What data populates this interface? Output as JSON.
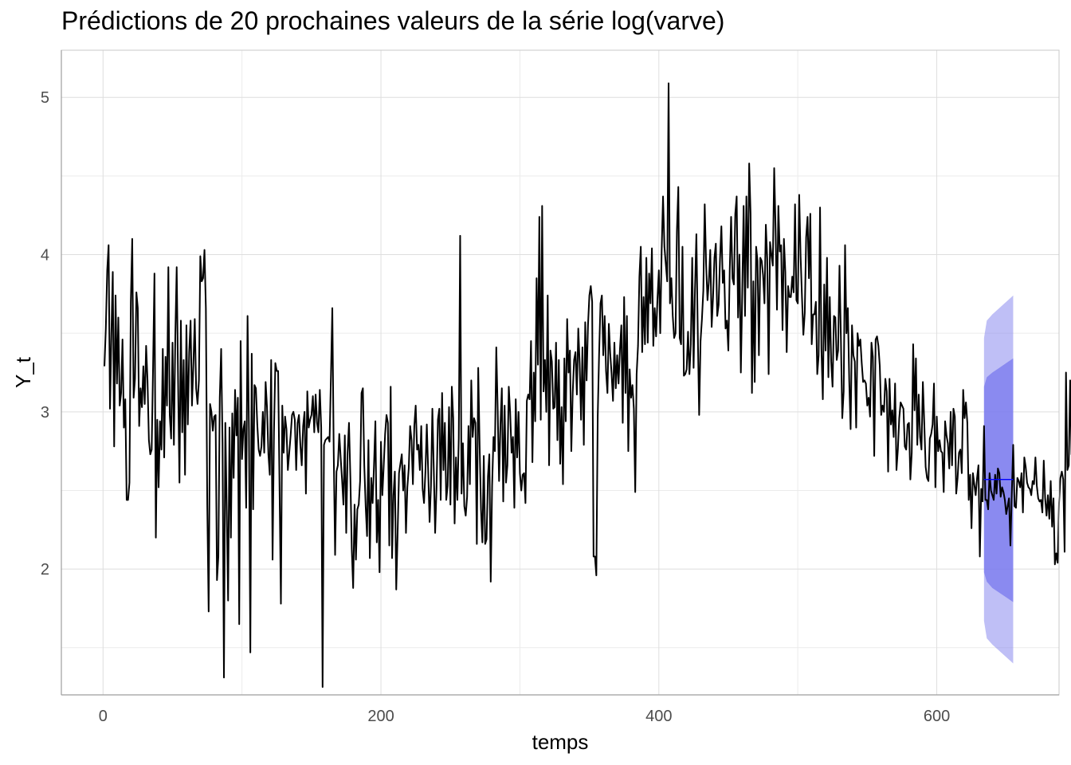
{
  "chart_data": {
    "type": "line",
    "title": "Prédictions de 20 prochaines valeurs de la série log(varve)",
    "xlabel": "temps",
    "ylabel": "Y_t",
    "xlim": [
      -30,
      688
    ],
    "ylim": [
      1.2,
      5.3
    ],
    "x_ticks": [
      0,
      200,
      400,
      600
    ],
    "y_ticks": [
      2,
      3,
      4,
      5
    ],
    "x_minor_ticks": [
      100,
      300,
      500
    ],
    "y_minor_ticks": [
      1.5,
      2.5,
      3.5,
      4.5
    ],
    "grid": true,
    "legend": "none",
    "series": [
      {
        "kind": "observed",
        "color": "#000000",
        "x_start": 1,
        "x_step": 1,
        "values": [
          3.29,
          3.53,
          3.9,
          4.06,
          3.02,
          3.49,
          3.89,
          2.78,
          3.74,
          3.18,
          3.6,
          3.04,
          3.12,
          3.46,
          2.9,
          3.08,
          2.44,
          2.44,
          2.55,
          3.7,
          4.1,
          3.09,
          3.21,
          3.76,
          3.66,
          2.91,
          3.15,
          3.03,
          3.29,
          3.05,
          3.42,
          3.2,
          2.82,
          2.73,
          2.76,
          3.29,
          3.88,
          2.2,
          2.95,
          2.52,
          2.94,
          2.76,
          3.4,
          2.71,
          3.35,
          3.04,
          3.92,
          2.98,
          2.83,
          3.44,
          2.79,
          3.48,
          3.92,
          3.2,
          2.55,
          3.58,
          2.87,
          3.33,
          2.6,
          3.55,
          2.92,
          3.38,
          3.58,
          3.04,
          3.3,
          3.59,
          3.15,
          3.05,
          3.2,
          3.99,
          3.83,
          3.85,
          4.03,
          3.66,
          2.41,
          1.73,
          3.05,
          3.0,
          2.88,
          2.97,
          2.98,
          1.93,
          2.08,
          3.09,
          3.4,
          2.8,
          1.31,
          2.93,
          2.39,
          1.8,
          2.9,
          2.2,
          2.99,
          2.58,
          3.14,
          2.85,
          3.09,
          1.65,
          3.45,
          2.7,
          2.89,
          2.94,
          2.39,
          3.61,
          2.89,
          1.47,
          3.37,
          2.38,
          3.17,
          3.15,
          2.92,
          2.76,
          2.72,
          2.78,
          3.0,
          2.74,
          3.19,
          3.03,
          2.73,
          2.6,
          3.33,
          2.06,
          2.87,
          3.31,
          3.26,
          3.26,
          2.53,
          1.78,
          3.04,
          2.74,
          2.97,
          2.89,
          2.63,
          2.74,
          2.85,
          2.98,
          3.0,
          2.95,
          2.63,
          2.93,
          2.98,
          2.79,
          2.66,
          2.91,
          3.0,
          2.48,
          3.13,
          2.9,
          2.95,
          2.98,
          3.1,
          2.87,
          3.11,
          2.93,
          2.87,
          3.14,
          2.9,
          1.25,
          2.79,
          2.82,
          2.83,
          2.84,
          2.81,
          3.22,
          3.66,
          2.75,
          2.09,
          2.62,
          2.66,
          2.86,
          2.71,
          2.57,
          2.41,
          2.85,
          2.23,
          2.74,
          2.93,
          2.58,
          2.13,
          1.88,
          2.41,
          2.06,
          2.38,
          2.41,
          2.56,
          3.12,
          3.15,
          2.66,
          2.4,
          2.21,
          2.82,
          2.07,
          2.58,
          2.42,
          2.66,
          2.94,
          2.17,
          2.44,
          1.98,
          2.81,
          2.47,
          2.66,
          2.86,
          2.98,
          2.93,
          2.15,
          3.16,
          2.07,
          2.47,
          2.62,
          1.87,
          2.23,
          2.61,
          2.67,
          2.73,
          2.5,
          2.66,
          2.23,
          2.52,
          2.64,
          2.91,
          2.82,
          2.54,
          2.91,
          3.04,
          2.76,
          2.79,
          2.63,
          2.91,
          2.51,
          2.42,
          2.62,
          2.92,
          2.62,
          2.3,
          2.53,
          3.02,
          2.64,
          2.23,
          2.52,
          2.95,
          3.02,
          2.44,
          3.12,
          2.63,
          2.93,
          2.44,
          2.53,
          3.03,
          2.41,
          3.16,
          2.96,
          2.29,
          2.71,
          2.44,
          2.83,
          4.12,
          2.48,
          2.8,
          2.4,
          2.34,
          2.46,
          2.91,
          2.54,
          3.2,
          2.84,
          2.96,
          2.93,
          2.16,
          3.28,
          2.79,
          2.38,
          2.17,
          2.72,
          2.16,
          2.19,
          2.59,
          2.73,
          1.92,
          2.53,
          2.84,
          2.75,
          3.41,
          3.02,
          2.56,
          2.92,
          3.15,
          2.43,
          3.04,
          2.55,
          2.66,
          3.16,
          2.99,
          2.74,
          2.84,
          2.39,
          3.08,
          2.71,
          3.0,
          2.61,
          2.5,
          2.6,
          2.61,
          2.42,
          3.07,
          3.11,
          3.08,
          3.45,
          2.68,
          3.25,
          2.94,
          3.85,
          3.3,
          4.24,
          2.95,
          4.31,
          3.13,
          3.33,
          3.0,
          3.74,
          2.66,
          3.39,
          3.32,
          3.02,
          3.03,
          3.44,
          2.82,
          3.33,
          2.67,
          3.03,
          2.54,
          3.34,
          2.94,
          3.59,
          3.25,
          3.39,
          2.75,
          3.12,
          3.33,
          3.38,
          3.11,
          3.53,
          3.31,
          2.95,
          3.41,
          2.79,
          3.57,
          3.2,
          3.55,
          3.74,
          3.8,
          3.7,
          2.08,
          2.08,
          1.96,
          2.97,
          3.37,
          3.69,
          3.74,
          3.36,
          3.61,
          3.26,
          3.12,
          3.56,
          3.37,
          3.24,
          3.07,
          3.44,
          3.15,
          3.36,
          3.18,
          3.4,
          3.55,
          2.93,
          3.73,
          3.12,
          3.61,
          2.75,
          3.27,
          3.09,
          3.17,
          3.02,
          2.49,
          3.24,
          3.42,
          3.86,
          4.05,
          3.38,
          3.73,
          3.43,
          3.98,
          3.44,
          3.88,
          3.69,
          4.04,
          3.42,
          3.66,
          3.48,
          3.72,
          3.9,
          3.5,
          4.02,
          4.37,
          4.05,
          3.94,
          3.83,
          5.09,
          3.69,
          3.85,
          3.61,
          3.47,
          3.5,
          4.15,
          4.43,
          3.47,
          3.43,
          4.05,
          3.23,
          3.24,
          3.27,
          3.51,
          3.24,
          3.43,
          3.98,
          3.28,
          3.78,
          4.13,
          3.51,
          2.98,
          3.45,
          3.59,
          3.77,
          4.32,
          3.94,
          3.71,
          3.83,
          4.03,
          3.54,
          3.73,
          3.98,
          4.07,
          3.61,
          3.68,
          3.97,
          4.18,
          3.82,
          3.9,
          3.53,
          3.58,
          3.39,
          3.9,
          4.24,
          3.85,
          3.81,
          4.26,
          4.37,
          3.6,
          4.0,
          3.25,
          3.75,
          4.31,
          3.61,
          4.37,
          3.79,
          4.58,
          4.26,
          3.12,
          3.83,
          3.19,
          4.05,
          3.96,
          3.36,
          3.98,
          3.96,
          3.87,
          3.69,
          4.19,
          3.97,
          3.24,
          4.08,
          4.0,
          3.93,
          4.55,
          4.16,
          3.65,
          4.31,
          4.02,
          4.06,
          3.52,
          4.1,
          3.89,
          3.38,
          3.8,
          3.73,
          3.73,
          3.86,
          3.76,
          4.32,
          3.71,
          3.69,
          4.38,
          3.99,
          3.73,
          3.49,
          3.63,
          4.11,
          4.24,
          3.85,
          4.26,
          3.43,
          3.62,
          3.62,
          3.7,
          3.24,
          3.36,
          4.3,
          3.4,
          3.08,
          3.81,
          3.39,
          3.98,
          3.22,
          3.73,
          3.32,
          3.16,
          3.61,
          3.6,
          3.33,
          3.39,
          3.93,
          3.47,
          2.96,
          3.13,
          4.06,
          3.5,
          3.66,
          3.2,
          2.89,
          3.55,
          3.36,
          3.32,
          2.9,
          3.5,
          3.42,
          3.46,
          3.31,
          3.19,
          3.2,
          3.18,
          3.04,
          3.09,
          2.97,
          3.44,
          3.35,
          2.72,
          3.46,
          3.48,
          3.42,
          3.29,
          2.98,
          3.04,
          3.0,
          3.21,
          3.13,
          2.62,
          3.21,
          2.92,
          3.01,
          2.84,
          3.18,
          2.63,
          2.76,
          2.96,
          3.06,
          3.04,
          3.02,
          2.78,
          2.76,
          2.92,
          2.93,
          2.57,
          2.74,
          3.43,
          3.01,
          3.34,
          2.79,
          3.11,
          2.84,
          2.76,
          3.19,
          2.93,
          2.65,
          2.58,
          2.56,
          2.83,
          2.86,
          2.92,
          3.18,
          2.52,
          2.97,
          2.75,
          2.82,
          2.75,
          2.74,
          2.49,
          2.94,
          2.85,
          2.8,
          2.64,
          3.0,
          2.66,
          3.02,
          2.97,
          2.48,
          2.58,
          2.74,
          2.76,
          2.61,
          3.14,
          2.96,
          3.06,
          2.93,
          2.44,
          2.6,
          2.26,
          2.61,
          2.54,
          2.47,
          2.58,
          2.66,
          2.08,
          2.51,
          2.43,
          2.91,
          2.44,
          2.44,
          2.38,
          2.61,
          2.5,
          2.47,
          2.44,
          2.6,
          2.48,
          2.64,
          2.61,
          2.46,
          2.52,
          2.49,
          2.44,
          2.35,
          2.4,
          2.45,
          2.15,
          2.48,
          2.79,
          2.4,
          2.39,
          2.58,
          2.56,
          2.52,
          2.61,
          2.36,
          2.71,
          2.65,
          2.55,
          2.52,
          2.51,
          2.47,
          2.56,
          2.54,
          2.71,
          2.53,
          2.45,
          2.43,
          2.44,
          2.36,
          2.69,
          2.45,
          2.34,
          2.47,
          2.32,
          2.56,
          2.27,
          2.45,
          2.03,
          2.1,
          2.04,
          2.42,
          2.58,
          2.62,
          2.57,
          2.11,
          3.25,
          2.63,
          2.66,
          3.2,
          2.73,
          2.85,
          2.56
        ]
      },
      {
        "kind": "forecast",
        "color": "#0000ff",
        "x": [
          634,
          655
        ],
        "values": [
          2.57,
          2.57
        ]
      }
    ],
    "bands": [
      {
        "level": "95%",
        "color": "#8080ee",
        "opacity": 0.5,
        "x": [
          634,
          636,
          640,
          645,
          650,
          655
        ],
        "lower": [
          1.67,
          1.56,
          1.52,
          1.48,
          1.44,
          1.4
        ],
        "upper": [
          3.47,
          3.58,
          3.62,
          3.66,
          3.7,
          3.74
        ]
      },
      {
        "level": "80%",
        "color": "#8080ee",
        "opacity": 0.85,
        "x": [
          634,
          636,
          640,
          645,
          650,
          655
        ],
        "lower": [
          1.98,
          1.92,
          1.88,
          1.85,
          1.82,
          1.79
        ],
        "upper": [
          3.16,
          3.22,
          3.25,
          3.28,
          3.31,
          3.34
        ]
      }
    ]
  }
}
